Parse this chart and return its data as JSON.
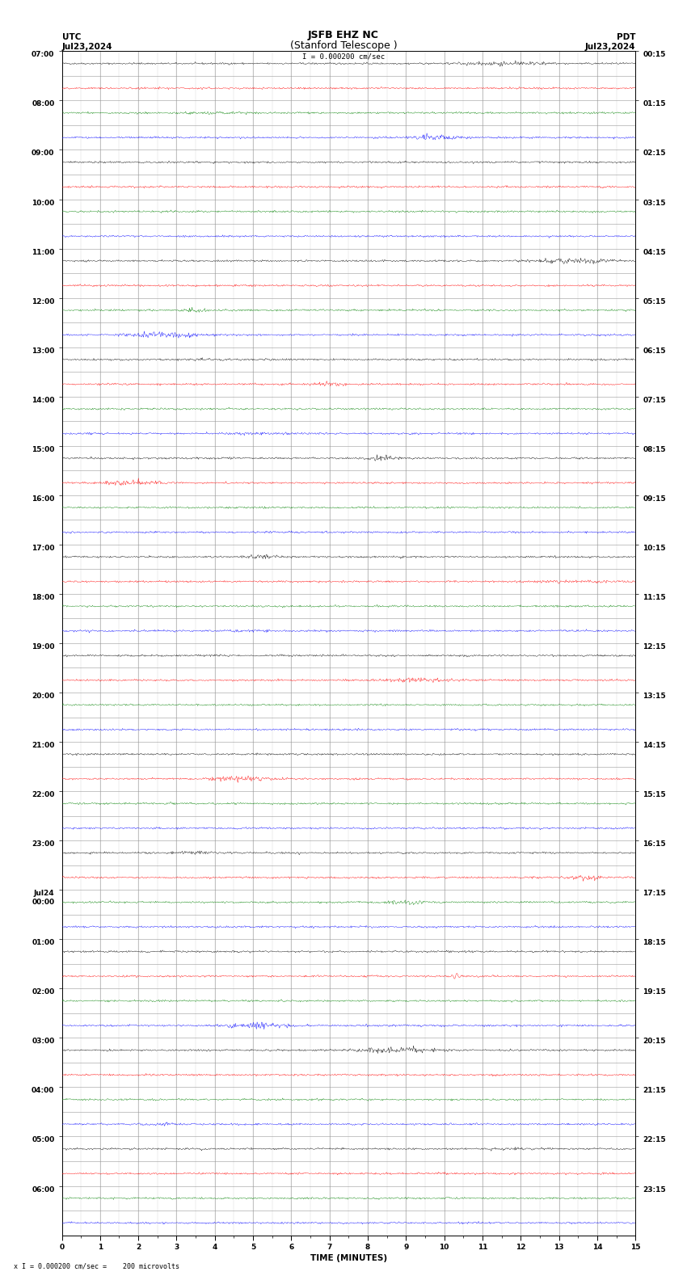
{
  "title_line1": "JSFB EHZ NC",
  "title_line2": "(Stanford Telescope )",
  "scale_text": "I = 0.000200 cm/sec",
  "bottom_text": "x I = 0.000200 cm/sec =    200 microvolts",
  "utc_label": "UTC",
  "pdt_label": "PDT",
  "date_left": "Jul23,2024",
  "date_right": "Jul23,2024",
  "xlabel": "TIME (MINUTES)",
  "xmin": 0,
  "xmax": 15,
  "num_rows": 48,
  "bg_color": "#ffffff",
  "grid_color": "#999999",
  "trace_colors": [
    "black",
    "red",
    "green",
    "blue"
  ],
  "utc_labels": [
    "07:00",
    "",
    "08:00",
    "",
    "09:00",
    "",
    "10:00",
    "",
    "11:00",
    "",
    "12:00",
    "",
    "13:00",
    "",
    "14:00",
    "",
    "15:00",
    "",
    "16:00",
    "",
    "17:00",
    "",
    "18:00",
    "",
    "19:00",
    "",
    "20:00",
    "",
    "21:00",
    "",
    "22:00",
    "",
    "23:00",
    "",
    "Jul24\n00:00",
    "",
    "01:00",
    "",
    "02:00",
    "",
    "03:00",
    "",
    "04:00",
    "",
    "05:00",
    "",
    "06:00",
    ""
  ],
  "pdt_labels": [
    "00:15",
    "",
    "01:15",
    "",
    "02:15",
    "",
    "03:15",
    "",
    "04:15",
    "",
    "05:15",
    "",
    "06:15",
    "",
    "07:15",
    "",
    "08:15",
    "",
    "09:15",
    "",
    "10:15",
    "",
    "11:15",
    "",
    "12:15",
    "",
    "13:15",
    "",
    "14:15",
    "",
    "15:15",
    "",
    "16:15",
    "",
    "17:15",
    "",
    "18:15",
    "",
    "19:15",
    "",
    "20:15",
    "",
    "21:15",
    "",
    "22:15",
    "",
    "23:15",
    ""
  ],
  "noise_seed": 42,
  "title_fontsize": 9,
  "label_fontsize": 7.5,
  "tick_fontsize": 6.5
}
